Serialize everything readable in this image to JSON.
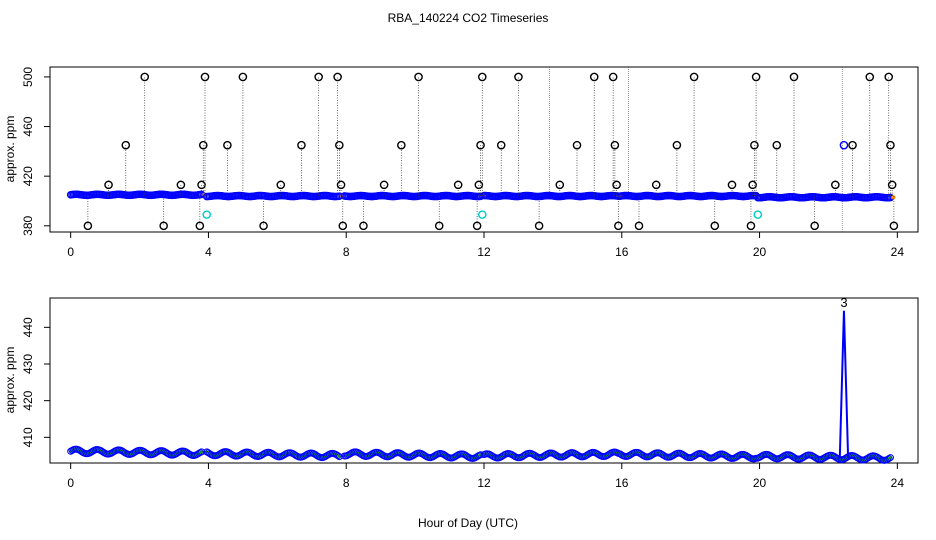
{
  "figure": {
    "title": "RBA_140224  CO2 Timeseries",
    "xlabel": "Hour of Day (UTC)"
  },
  "colors": {
    "axis": "#000000",
    "series_main": "#0000ff",
    "series_inner": "#00aa00",
    "cyan_points": "#00cccc",
    "flag_points": "#000000",
    "orange_marks": "#ff8c00"
  },
  "chart_data": [
    {
      "type": "scatter",
      "panel": "top",
      "title": "RBA_140224  CO2 Timeseries",
      "ylabel": "approx. ppm",
      "xlim": [
        -0.6,
        24.6
      ],
      "ylim": [
        375,
        508
      ],
      "xticks": [
        0,
        4,
        8,
        12,
        16,
        20,
        24
      ],
      "yticks": [
        380,
        420,
        460,
        500
      ],
      "baseline_segments": [
        {
          "x0": 0.0,
          "x1": 3.8,
          "y0": 405,
          "y1": 405
        },
        {
          "x0": 3.95,
          "x1": 7.8,
          "y0": 404,
          "y1": 404
        },
        {
          "x0": 7.95,
          "x1": 11.9,
          "y0": 404,
          "y1": 404
        },
        {
          "x0": 12.0,
          "x1": 15.9,
          "y0": 404,
          "y1": 404
        },
        {
          "x0": 15.95,
          "x1": 19.9,
          "y0": 404,
          "y1": 404
        },
        {
          "x0": 19.95,
          "x1": 23.8,
          "y0": 403,
          "y1": 403
        }
      ],
      "flag_points": [
        {
          "x": 0.5,
          "y": 380
        },
        {
          "x": 1.1,
          "y": 413
        },
        {
          "x": 1.6,
          "y": 445
        },
        {
          "x": 2.15,
          "y": 500
        },
        {
          "x": 2.7,
          "y": 380
        },
        {
          "x": 3.2,
          "y": 413
        },
        {
          "x": 3.75,
          "y": 380
        },
        {
          "x": 3.8,
          "y": 413
        },
        {
          "x": 3.85,
          "y": 445
        },
        {
          "x": 3.9,
          "y": 500
        },
        {
          "x": 4.55,
          "y": 445
        },
        {
          "x": 5.0,
          "y": 500
        },
        {
          "x": 5.6,
          "y": 380
        },
        {
          "x": 6.1,
          "y": 413
        },
        {
          "x": 6.7,
          "y": 445
        },
        {
          "x": 7.2,
          "y": 500
        },
        {
          "x": 7.75,
          "y": 500
        },
        {
          "x": 7.8,
          "y": 445
        },
        {
          "x": 7.85,
          "y": 413
        },
        {
          "x": 7.9,
          "y": 380
        },
        {
          "x": 8.5,
          "y": 380
        },
        {
          "x": 9.1,
          "y": 413
        },
        {
          "x": 9.6,
          "y": 445
        },
        {
          "x": 10.1,
          "y": 500
        },
        {
          "x": 10.7,
          "y": 380
        },
        {
          "x": 11.25,
          "y": 413
        },
        {
          "x": 11.8,
          "y": 380
        },
        {
          "x": 11.85,
          "y": 413
        },
        {
          "x": 11.9,
          "y": 445
        },
        {
          "x": 11.95,
          "y": 500
        },
        {
          "x": 12.5,
          "y": 445
        },
        {
          "x": 13.0,
          "y": 500
        },
        {
          "x": 13.6,
          "y": 380
        },
        {
          "x": 14.2,
          "y": 413
        },
        {
          "x": 14.7,
          "y": 445
        },
        {
          "x": 15.2,
          "y": 500
        },
        {
          "x": 15.75,
          "y": 500
        },
        {
          "x": 15.8,
          "y": 445
        },
        {
          "x": 15.85,
          "y": 413
        },
        {
          "x": 15.9,
          "y": 380
        },
        {
          "x": 16.5,
          "y": 380
        },
        {
          "x": 17.0,
          "y": 413
        },
        {
          "x": 17.6,
          "y": 445
        },
        {
          "x": 18.1,
          "y": 500
        },
        {
          "x": 18.7,
          "y": 380
        },
        {
          "x": 19.2,
          "y": 413
        },
        {
          "x": 19.75,
          "y": 380
        },
        {
          "x": 19.8,
          "y": 413
        },
        {
          "x": 19.85,
          "y": 445
        },
        {
          "x": 19.9,
          "y": 500
        },
        {
          "x": 20.5,
          "y": 445
        },
        {
          "x": 21.0,
          "y": 500
        },
        {
          "x": 21.6,
          "y": 380
        },
        {
          "x": 22.2,
          "y": 413
        },
        {
          "x": 22.7,
          "y": 445
        },
        {
          "x": 23.2,
          "y": 500
        },
        {
          "x": 23.75,
          "y": 500
        },
        {
          "x": 23.8,
          "y": 445
        },
        {
          "x": 23.85,
          "y": 413
        },
        {
          "x": 23.9,
          "y": 380
        }
      ],
      "cyan_points": [
        {
          "x": 3.95,
          "y": 389
        },
        {
          "x": 11.95,
          "y": 389
        },
        {
          "x": 19.95,
          "y": 389
        },
        {
          "x": 22.45,
          "y": 445
        }
      ],
      "vertical_lines": [
        {
          "x": 13.9,
          "y0": 404,
          "y1": 508
        },
        {
          "x": 16.2,
          "y0": 404,
          "y1": 508
        },
        {
          "x": 22.4,
          "y0": 375,
          "y1": 508
        }
      ]
    },
    {
      "type": "line",
      "panel": "bottom",
      "ylabel": "approx. ppm",
      "xlim": [
        -0.6,
        24.6
      ],
      "ylim": [
        403,
        448
      ],
      "xticks": [
        0,
        4,
        8,
        12,
        16,
        20,
        24
      ],
      "yticks": [
        410,
        420,
        430,
        440
      ],
      "segments": [
        {
          "x0": 0.0,
          "x1": 3.8,
          "y0": 406.2,
          "y1": 405.6
        },
        {
          "x0": 3.95,
          "x1": 7.8,
          "y0": 405.6,
          "y1": 405.0
        },
        {
          "x0": 7.95,
          "x1": 11.9,
          "y0": 405.5,
          "y1": 404.8
        },
        {
          "x0": 12.0,
          "x1": 15.9,
          "y0": 404.9,
          "y1": 405.4
        },
        {
          "x0": 15.95,
          "x1": 19.9,
          "y0": 405.4,
          "y1": 404.7
        },
        {
          "x0": 19.95,
          "x1": 23.8,
          "y0": 404.8,
          "y1": 404.3
        }
      ],
      "spike": {
        "x": 22.45,
        "y": 444.5,
        "label": "3"
      }
    }
  ]
}
